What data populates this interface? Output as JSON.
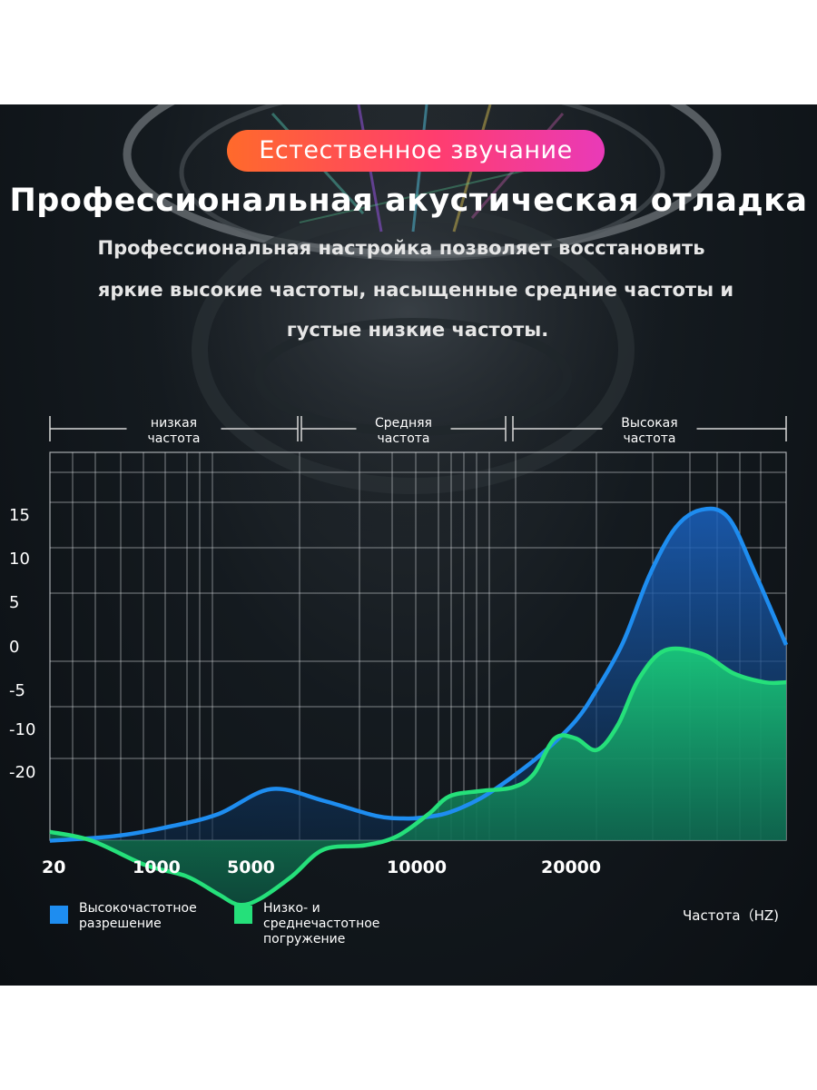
{
  "badge": "Естественное звучание",
  "title": "Профессиональная акустическая отладка",
  "subtitle_lines": [
    "Профессиональная настройка позволяет восстановить",
    "яркие высокие частоты, насыщенные средние частоты и",
    "густые низкие частоты."
  ],
  "colors": {
    "high_series": "#1e8df0",
    "low_mid_series": "#25e07a",
    "badge_start": "#ff6a2b",
    "badge_end": "#e93ab8"
  },
  "chart_data": {
    "type": "area",
    "bands": [
      {
        "line1": "низкая",
        "line2": "частота"
      },
      {
        "line1": "Средняя",
        "line2": "частота"
      },
      {
        "line1": "Высокая",
        "line2": "частота"
      }
    ],
    "yticks": [
      "15",
      "10",
      "5",
      "0",
      "-5",
      "-10",
      "-20"
    ],
    "xticks": [
      "20",
      "1000",
      "5000",
      "10000",
      "20000"
    ],
    "xlabel": "Частота（HZ)",
    "series": [
      {
        "name": "Высокочастотное разрешение",
        "color": "#1e8df0",
        "x": [
          0,
          0.6,
          1.1,
          1.6,
          2.1,
          2.6,
          3.1,
          3.4,
          3.6,
          3.8,
          4.1,
          4.4,
          4.7,
          5.0,
          5.2,
          5.45,
          5.7,
          5.95,
          6.2,
          6.45,
          6.7,
          7.0
        ],
        "y": [
          -22,
          -21.5,
          -20.5,
          -19,
          -16.2,
          -17.5,
          -19.2,
          -19.5,
          -19.3,
          -18.8,
          -17.2,
          -14.8,
          -12,
          -8.5,
          -5,
          0.3,
          7.8,
          13.2,
          15.2,
          14.3,
          8.2,
          0
        ]
      },
      {
        "name": "Низко- и среднечастотное погружение",
        "color": "#25e07a",
        "x": [
          0,
          0.4,
          0.9,
          1.3,
          1.6,
          1.8,
          2.0,
          2.3,
          2.6,
          3.0,
          3.3,
          3.6,
          3.8,
          4.1,
          4.4,
          4.6,
          4.8,
          5.0,
          5.2,
          5.4,
          5.6,
          5.85,
          6.2,
          6.5,
          6.8,
          7.0
        ],
        "y": [
          -21,
          -22,
          -24.7,
          -26,
          -28,
          -29.2,
          -28.5,
          -26,
          -23,
          -22.5,
          -21.5,
          -19,
          -17,
          -16.4,
          -16,
          -14.5,
          -10.5,
          -10.5,
          -11.8,
          -9,
          -3.8,
          -0.6,
          -1,
          -3.2,
          -4.2,
          -4.2
        ]
      }
    ]
  }
}
